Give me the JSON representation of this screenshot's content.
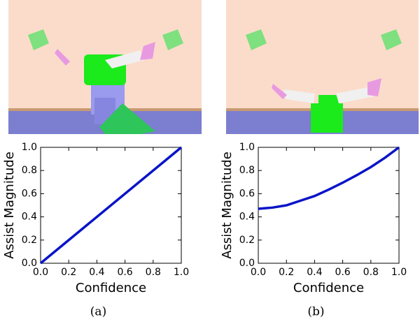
{
  "chart_data": [
    {
      "type": "line",
      "caption": "(a)",
      "xlabel": "Confidence",
      "ylabel": "Assist Magnitude",
      "x": [
        0,
        1
      ],
      "values": [
        0,
        1
      ],
      "color": "#0a14c8",
      "xlim": [
        0,
        1
      ],
      "ylim": [
        0,
        1
      ],
      "xticks": [
        {
          "value": 0,
          "label": "0.0"
        },
        {
          "value": 0.2,
          "label": "0.2"
        },
        {
          "value": 0.4,
          "label": "0.4"
        },
        {
          "value": 0.6,
          "label": "0.6"
        },
        {
          "value": 0.8,
          "label": "0.8"
        },
        {
          "value": 1,
          "label": "1.0"
        }
      ],
      "yticks": [
        {
          "value": 0,
          "label": "0.0"
        },
        {
          "value": 0.2,
          "label": "0.2"
        },
        {
          "value": 0.4,
          "label": "0.4"
        },
        {
          "value": 0.6,
          "label": "0.6"
        },
        {
          "value": 0.8,
          "label": "0.8"
        },
        {
          "value": 1,
          "label": "1.0"
        }
      ]
    },
    {
      "type": "line",
      "caption": "(b)",
      "xlabel": "Confidence",
      "ylabel": "Assist Magnitude",
      "x": [
        0,
        0.1,
        0.2,
        0.3,
        0.4,
        0.5,
        0.6,
        0.7,
        0.8,
        0.9,
        1
      ],
      "values": [
        0.47,
        0.48,
        0.5,
        0.54,
        0.58,
        0.635,
        0.695,
        0.76,
        0.83,
        0.91,
        1
      ],
      "color": "#0a14c8",
      "xlim": [
        0,
        1
      ],
      "ylim": [
        0,
        1
      ],
      "xticks": [
        {
          "value": 0,
          "label": "0.0"
        },
        {
          "value": 0.2,
          "label": "0.2"
        },
        {
          "value": 0.4,
          "label": "0.4"
        },
        {
          "value": 0.6,
          "label": "0.6"
        },
        {
          "value": 0.8,
          "label": "0.8"
        },
        {
          "value": 1,
          "label": "1.0"
        }
      ],
      "yticks": [
        {
          "value": 0,
          "label": "0.0"
        },
        {
          "value": 0.2,
          "label": "0.2"
        },
        {
          "value": 0.4,
          "label": "0.4"
        },
        {
          "value": 0.6,
          "label": "0.6"
        },
        {
          "value": 0.8,
          "label": "0.8"
        },
        {
          "value": 1,
          "label": "1.0"
        }
      ]
    }
  ]
}
